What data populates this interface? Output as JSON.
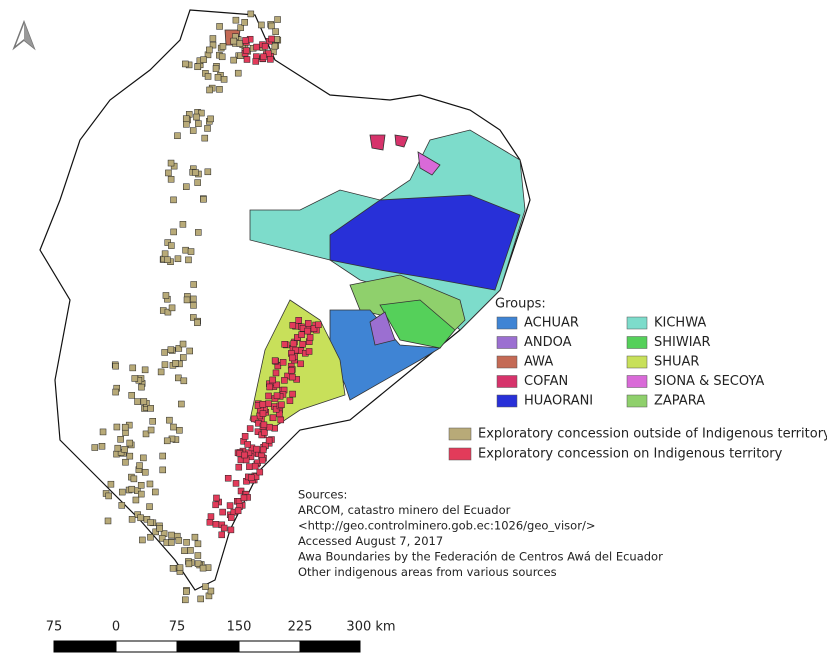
{
  "legend": {
    "title": "Groups:",
    "groups": [
      {
        "name": "ACHUAR",
        "color": "#3f84d4"
      },
      {
        "name": "ANDOA",
        "color": "#9b6fd1"
      },
      {
        "name": "AWA",
        "color": "#c46a55"
      },
      {
        "name": "COFAN",
        "color": "#d6336b"
      },
      {
        "name": "HUAORANI",
        "color": "#2830d8"
      },
      {
        "name": "KICHWA",
        "color": "#7ddccb"
      },
      {
        "name": "SHIWIAR",
        "color": "#55d05a"
      },
      {
        "name": "SHUAR",
        "color": "#c8e05a"
      },
      {
        "name": "SIONA & SECOYA",
        "color": "#d96ad8"
      },
      {
        "name": "ZAPARA",
        "color": "#8fd06c"
      }
    ]
  },
  "concessions": [
    {
      "label": "Exploratory concession outside of Indigenous territory",
      "color": "#b8aa78"
    },
    {
      "label": "Exploratory concession on Indigenous territory",
      "color": "#e23b5a"
    }
  ],
  "sources": [
    "Sources:",
    "ARCOM, catastro minero del Ecuador",
    "<http://geo.controlminero.gob.ec:1026/geo_visor/>",
    "Accessed August 7, 2017",
    "Awa  Boundaries by the Federación de Centros Awá del Ecuador",
    "Other indigenous areas from various sources"
  ],
  "scale_bar": [
    "75",
    "0",
    "75",
    "150",
    "225",
    "300 km"
  ]
}
